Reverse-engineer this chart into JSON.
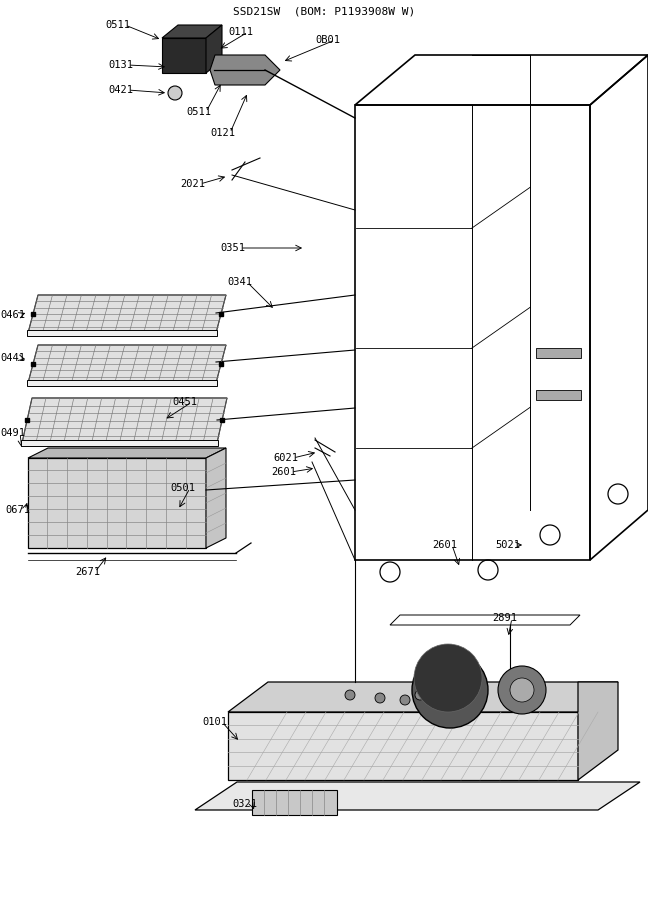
{
  "title": "SSD21SW  (BOM: P1193908W W)",
  "bg_color": "#ffffff",
  "line_color": "#000000",
  "text_color": "#000000",
  "label_fontsize": 7.5,
  "title_fontsize": 8,
  "figsize": [
    6.48,
    9.0
  ],
  "dpi": 100
}
